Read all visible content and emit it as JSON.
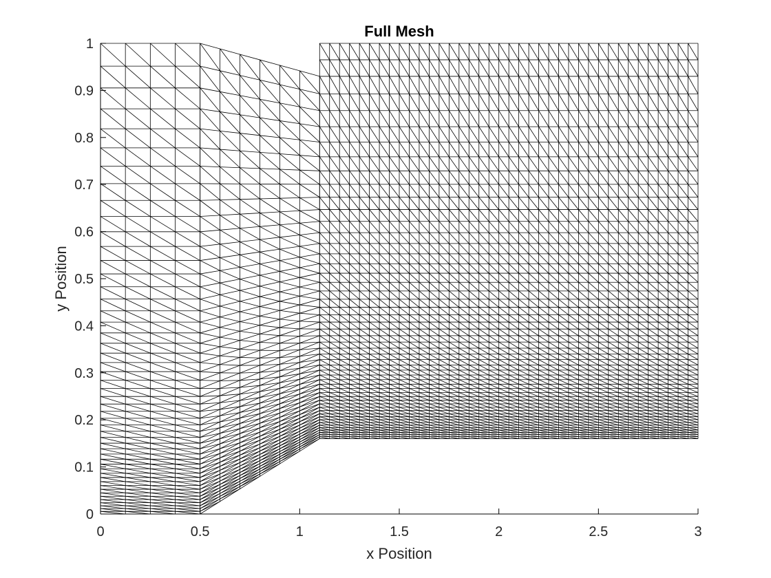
{
  "chart_data": {
    "type": "mesh",
    "title": "Full Mesh",
    "xlabel": "x Position",
    "ylabel": "y Position",
    "xlim": [
      0,
      3
    ],
    "ylim": [
      0,
      1
    ],
    "xticks": [
      0,
      0.5,
      1,
      1.5,
      2,
      2.5,
      3
    ],
    "xtick_labels": [
      "0",
      "0.5",
      "1",
      "1.5",
      "2",
      "2.5",
      "3"
    ],
    "yticks": [
      0,
      0.1,
      0.2,
      0.3,
      0.4,
      0.5,
      0.6,
      0.7,
      0.8,
      0.9,
      1
    ],
    "ytick_labels": [
      "0",
      "0.1",
      "0.2",
      "0.3",
      "0.4",
      "0.5",
      "0.6",
      "0.7",
      "0.8",
      "0.9",
      "1"
    ],
    "grid": false,
    "line_color": "#000000",
    "regions": [
      {
        "name": "inlet",
        "x_range": [
          0,
          0.5
        ],
        "bottom": [
          [
            0,
            0
          ],
          [
            0.5,
            0
          ]
        ],
        "top": [
          [
            0,
            1
          ],
          [
            0.5,
            1
          ]
        ],
        "x_columns": [
          0,
          0.125,
          0.25,
          0.375,
          0.5
        ]
      },
      {
        "name": "ramp",
        "x_range": [
          0.5,
          1.1
        ],
        "bottom": [
          [
            0.5,
            0
          ],
          [
            1.1,
            0.16
          ]
        ],
        "top": [
          [
            0.5,
            1
          ],
          [
            1.1,
            0.93
          ]
        ],
        "x_columns": [
          0.5,
          0.6,
          0.7,
          0.8,
          0.9,
          1.0,
          1.1
        ]
      },
      {
        "name": "outlet",
        "x_range": [
          1.1,
          3
        ],
        "bottom": [
          [
            1.1,
            0.16
          ],
          [
            3,
            0.16
          ]
        ],
        "top": [
          [
            1.1,
            0.93
          ],
          [
            3,
            0.93
          ]
        ],
        "cell_width": 0.05
      },
      {
        "name": "outlet-top-band",
        "x_range": [
          1.1,
          3
        ],
        "bottom": [
          [
            1.1,
            0.93
          ],
          [
            3,
            0.93
          ]
        ],
        "top": [
          [
            1.1,
            1
          ],
          [
            3,
            1
          ]
        ],
        "cell_width": 0.05,
        "rows": 2
      }
    ],
    "rows_main": 50,
    "row_stretch": 2.2
  }
}
